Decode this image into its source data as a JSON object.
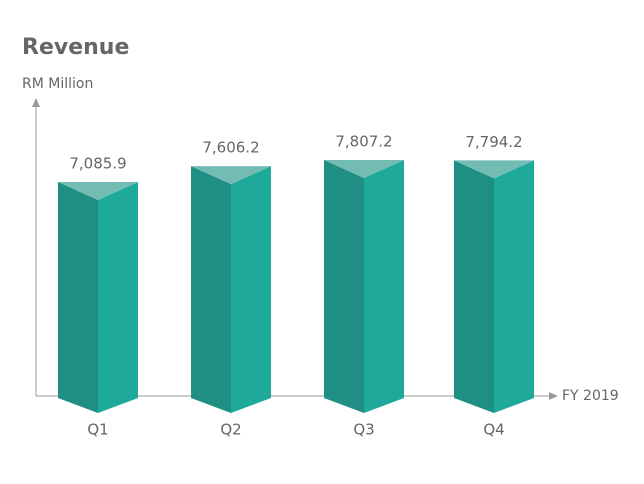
{
  "chart_data": {
    "type": "bar",
    "title": "Revenue",
    "y_label": "RM Million",
    "x_label": "FY 2019",
    "categories": [
      "Q1",
      "Q2",
      "Q3",
      "Q4"
    ],
    "values": [
      7085.9,
      7606.2,
      7807.2,
      7794.2
    ],
    "value_labels": [
      "7,085.9",
      "7,606.2",
      "7,807.2",
      "7,794.2"
    ],
    "color": "#1ea99a"
  }
}
